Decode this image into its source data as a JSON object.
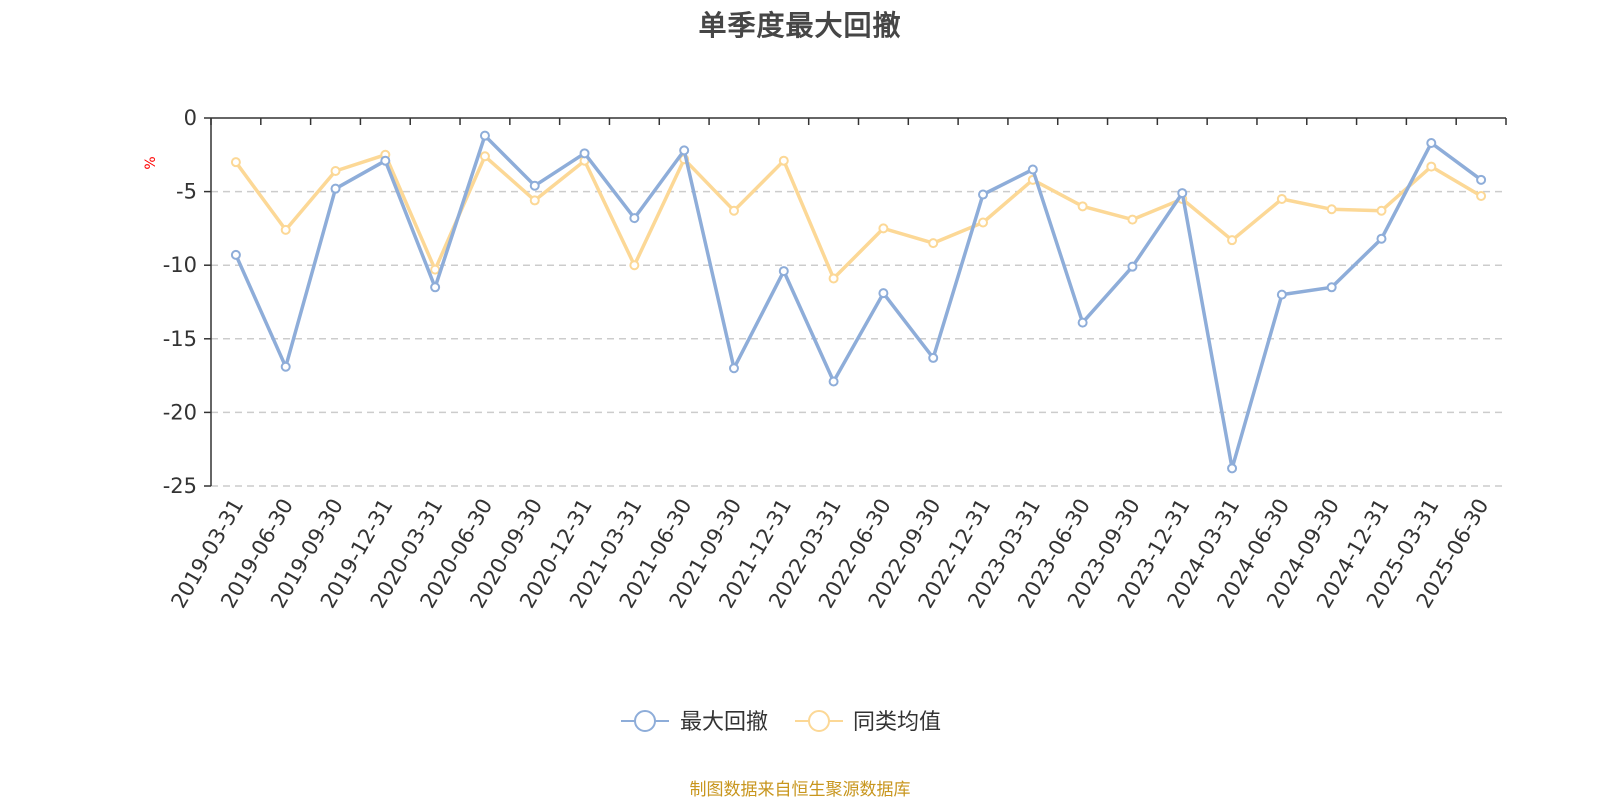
{
  "chart_data": {
    "type": "line",
    "title": "单季度最大回撤",
    "ylabel": "%",
    "xlabel": "",
    "ylim": [
      -25,
      0
    ],
    "yticks": [
      0,
      -5,
      -10,
      -15,
      -20,
      -25
    ],
    "grid": "horizontal dashed",
    "legend_position": "bottom-center",
    "categories": [
      "2019-03-31",
      "2019-06-30",
      "2019-09-30",
      "2019-12-31",
      "2020-03-31",
      "2020-06-30",
      "2020-09-30",
      "2020-12-31",
      "2021-03-31",
      "2021-06-30",
      "2021-09-30",
      "2021-12-31",
      "2022-03-31",
      "2022-06-30",
      "2022-09-30",
      "2022-12-31",
      "2023-03-31",
      "2023-06-30",
      "2023-09-30",
      "2023-12-31",
      "2024-03-31",
      "2024-06-30",
      "2024-09-30",
      "2024-12-31",
      "2025-03-31",
      "2025-06-30"
    ],
    "series": [
      {
        "name": "最大回撤",
        "color": "#8eadd9",
        "values": [
          -9.3,
          -16.9,
          -4.8,
          -2.9,
          -11.5,
          -1.2,
          -4.6,
          -2.4,
          -6.8,
          -2.2,
          -17.0,
          -10.4,
          -17.9,
          -11.9,
          -16.3,
          -5.2,
          -3.5,
          -13.9,
          -10.1,
          -5.1,
          -23.8,
          -12.0,
          -11.5,
          -8.2,
          -1.7,
          -4.2
        ]
      },
      {
        "name": "同类均值",
        "color": "#fcd896",
        "values": [
          -3.0,
          -7.6,
          -3.6,
          -2.5,
          -10.3,
          -2.6,
          -5.6,
          -2.9,
          -10.0,
          -2.8,
          -6.3,
          -2.9,
          -10.9,
          -7.5,
          -8.5,
          -7.1,
          -4.2,
          -6.0,
          -6.9,
          -5.5,
          -8.3,
          -5.5,
          -6.2,
          -6.3,
          -3.3,
          -5.3
        ]
      }
    ],
    "axis_color": "#333333",
    "grid_color": "#cccccc",
    "unit_color": "#ff0000"
  },
  "source_note": {
    "text": "制图数据来自恒生聚源数据库",
    "color": "#c8961e"
  }
}
